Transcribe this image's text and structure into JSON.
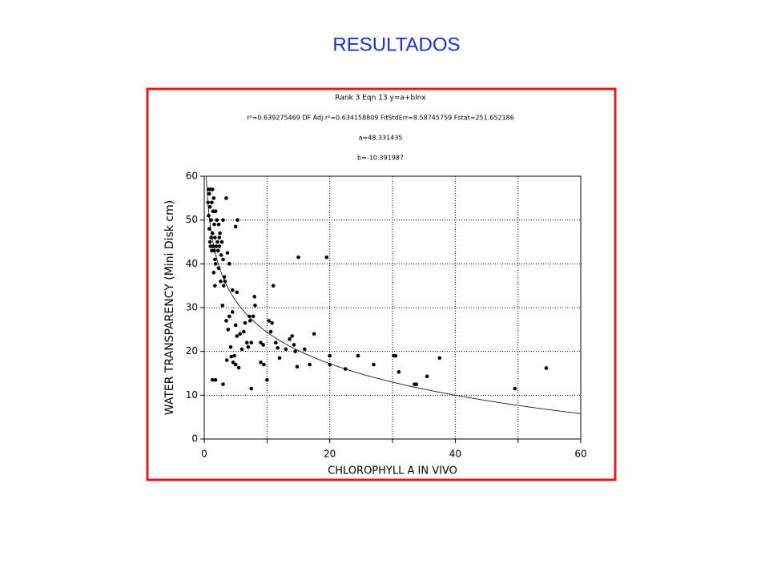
{
  "title": "RESULTADOS",
  "chart_data": {
    "type": "scatter",
    "header_lines": [
      "Rank 3  Eqn 13  y=a+blnx",
      "r²=0.639275469  DF Adj r²=0.634158809  FitStdErr=8.58745759  Fstat=251.652186"
    ],
    "fit": {
      "a": {
        "value": 48.331435,
        "label": "a=48.331435"
      },
      "b": {
        "value": -10.391987,
        "label": "b=-10.391987"
      }
    },
    "x_label": "CHLOROPHYLL A IN VIVO",
    "y_label": "WATER TRANSPARENCY (Mini Disk cm)",
    "xlim": [
      0,
      60
    ],
    "ylim": [
      0,
      60
    ],
    "xticks": [
      0,
      20,
      40,
      60
    ],
    "xminorticks": [
      10,
      30,
      50
    ],
    "yticks": [
      0,
      10,
      20,
      30,
      40,
      50,
      60
    ],
    "grid": true,
    "color": "#000000",
    "border_color": "#e8191e",
    "series": [
      {
        "x": [
          0.7,
          1,
          1.3,
          0.8,
          1.5,
          0.6,
          1.2,
          0.9,
          1.4,
          1.8,
          0.7,
          1.1,
          2,
          1.6,
          2.3,
          3,
          0.8,
          1.3,
          2.5,
          1.1,
          1.7,
          2.1,
          0.9,
          1.4,
          1.9,
          2.4,
          1.2,
          1.6,
          2.2,
          2.7,
          3,
          1.8,
          2.3,
          1.5,
          3.2,
          2.6,
          1.7,
          3.3,
          3.5,
          5,
          5.3,
          3.1,
          2.9,
          1.3,
          1.8,
          3,
          3.5,
          4,
          3.8,
          4.2,
          3.6,
          4.3,
          4.6,
          5,
          5.5,
          4.8,
          5.2,
          5.7,
          6.3,
          6.8,
          7,
          7.5,
          7.3,
          7.8,
          8,
          8.1,
          7.5,
          9,
          9.4,
          9,
          9.5,
          10,
          10.3,
          10.6,
          10.8,
          11,
          11.4,
          11.7,
          12,
          13,
          13.6,
          14,
          14.3,
          14.5,
          15,
          14.8,
          16,
          16.8,
          17.5,
          19.5,
          20,
          20,
          22.5,
          24.5,
          27,
          30.2,
          30.5,
          31,
          33.5,
          33.8,
          35.5,
          37.5,
          49.5,
          54.5,
          6,
          5.2,
          4.5,
          5,
          6.5,
          7.2,
          3.7,
          4,
          2.8,
          2.4,
          1,
          1.7,
          4.5
        ],
        "values": [
          57,
          57,
          57,
          56,
          55,
          54,
          54,
          53,
          52,
          52,
          51,
          50,
          50,
          49,
          49,
          50,
          48,
          47,
          47,
          46,
          46,
          45,
          45,
          44,
          44,
          44,
          43,
          43,
          43,
          42,
          41,
          40,
          39,
          38,
          37,
          36,
          35,
          36,
          55,
          48.5,
          50,
          35,
          30.5,
          13.5,
          13.5,
          12.5,
          27,
          28,
          25,
          21,
          18,
          18.8,
          17.5,
          17,
          16.3,
          19,
          23.5,
          24,
          24.5,
          22,
          21,
          22,
          27,
          28,
          32.5,
          30.5,
          11.5,
          22,
          21.5,
          17.5,
          17,
          13.5,
          27,
          24.5,
          26.5,
          35,
          22,
          20.8,
          18.5,
          20.5,
          22.8,
          23.5,
          21.5,
          20,
          41.5,
          16.5,
          20.5,
          17,
          24,
          41.5,
          19,
          17,
          16,
          19,
          17,
          19,
          19,
          15.3,
          12.5,
          12.5,
          14.3,
          18.5,
          11.5,
          16.2,
          20.5,
          33.5,
          29,
          26,
          26.5,
          28,
          42.5,
          40,
          45,
          46,
          44,
          41,
          34
        ]
      }
    ]
  }
}
